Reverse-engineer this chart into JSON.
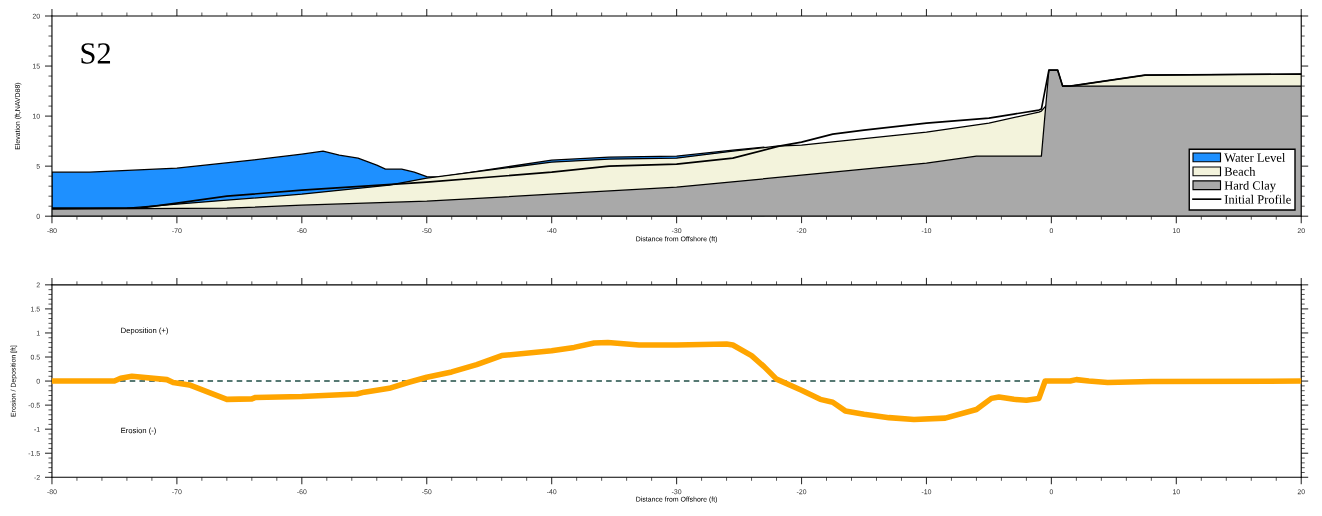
{
  "chart_data": [
    {
      "type": "area",
      "annotations": [
        "S2"
      ],
      "xlabel": "Distance from Offshore (ft)",
      "ylabel": "Elevation (ft,NAVD88)",
      "xlim": [
        -80,
        20
      ],
      "xticks": [
        -80,
        -70,
        -60,
        -50,
        -40,
        -30,
        -20,
        -10,
        0,
        10,
        20
      ],
      "ylim": [
        0,
        20
      ],
      "yticks": [
        0,
        5,
        10,
        15,
        20
      ],
      "grid": false,
      "legend": "bottom right",
      "series": [
        {
          "name": "Water Level",
          "color": "#1e90ff",
          "x": [
            -80,
            -77,
            -70,
            -64,
            -60,
            -58.3,
            -57,
            -55.5,
            -54,
            -53.3,
            -52,
            -51,
            -50,
            -49,
            -40,
            -35.4,
            -30,
            -25.5,
            -23
          ],
          "values": [
            4.4,
            4.4,
            4.8,
            5.6,
            6.2,
            6.5,
            6.1,
            5.8,
            5.1,
            4.7,
            4.7,
            4.4,
            3.95,
            3.9,
            5.6,
            5.9,
            6.0,
            6.6,
            6.9
          ]
        },
        {
          "name": "Beach",
          "color": "#f3f3dc",
          "x": [
            -80,
            -74,
            -70,
            -66,
            -60,
            -53,
            -50,
            -40,
            -35.4,
            -30,
            -25.5,
            -22,
            -20,
            -10,
            -5,
            -1,
            -0.8,
            0.9,
            1.5,
            7.5,
            20
          ],
          "values": [
            0.7,
            0.8,
            1.2,
            1.6,
            2.2,
            3.1,
            3.8,
            5.4,
            5.7,
            5.8,
            6.5,
            7.0,
            7.1,
            8.4,
            9.3,
            10.4,
            10.5,
            13.0,
            13.0,
            14.1,
            14.2
          ]
        },
        {
          "name": "Hard Clay",
          "color": "#a9a9a9",
          "x": [
            -80,
            -66,
            -60,
            -50,
            -40,
            -30,
            -20,
            -10,
            -6,
            -0.8,
            -0.2,
            0.5,
            0.9,
            20
          ],
          "values": [
            0.7,
            0.8,
            1.1,
            1.5,
            2.2,
            2.9,
            4.1,
            5.3,
            6.0,
            6.0,
            14.6,
            14.6,
            13.0,
            13.0
          ]
        },
        {
          "name": "Initial Profile",
          "type": "line",
          "color": "#000000",
          "x": [
            -80,
            -73,
            -70,
            -66,
            -60,
            -50,
            -40,
            -35.4,
            -30,
            -25.5,
            -21.8,
            -20,
            -17.5,
            -15,
            -10,
            -5,
            -3,
            -1,
            -0.8,
            -0.2,
            0.5,
            0.9,
            1.5,
            7.5,
            20
          ],
          "values": [
            0.8,
            0.8,
            1.3,
            2.0,
            2.6,
            3.4,
            4.4,
            5.0,
            5.2,
            5.8,
            7.0,
            7.4,
            8.2,
            8.6,
            9.3,
            9.8,
            10.2,
            10.6,
            10.7,
            14.6,
            14.6,
            13.0,
            13.0,
            14.1,
            14.2
          ]
        }
      ]
    },
    {
      "type": "line",
      "annotations": [
        "Deposition (+)",
        "Erosion (-)"
      ],
      "xlabel": "Distance from Offshore (ft)",
      "ylabel": "Erosion / Deposition [ft]",
      "xlim": [
        -80,
        20
      ],
      "xticks": [
        -80,
        -70,
        -60,
        -50,
        -40,
        -30,
        -20,
        -10,
        0,
        10,
        20
      ],
      "ylim": [
        -2,
        2
      ],
      "yticks": [
        -2,
        -1.5,
        -1,
        -0.5,
        0,
        0.5,
        1,
        1.5,
        2
      ],
      "grid": false,
      "ref_lines": [
        {
          "axis": "y",
          "value": 0,
          "color": "#1f4e46",
          "line_style": "dashed"
        }
      ],
      "series": [
        {
          "color": "#ffa500",
          "x": [
            -80,
            -75,
            -74.5,
            -73.6,
            -70.8,
            -70.3,
            -69,
            -66,
            -64,
            -63.7,
            -60,
            -55.6,
            -55,
            -53,
            -51.5,
            -50,
            -48,
            -46,
            -44,
            -40,
            -38.2,
            -36.6,
            -35.5,
            -33,
            -30,
            -28,
            -26,
            -25.5,
            -24,
            -23,
            -22,
            -20,
            -18.5,
            -17.5,
            -16.5,
            -15,
            -13,
            -11,
            -8.5,
            -6,
            -4.8,
            -4.2,
            -3,
            -2,
            -1,
            -0.5,
            1.5,
            2,
            3,
            4.5,
            8,
            20
          ],
          "values": [
            0,
            0,
            0.06,
            0.1,
            0.03,
            -0.03,
            -0.08,
            -0.38,
            -0.37,
            -0.34,
            -0.32,
            -0.27,
            -0.23,
            -0.15,
            -0.03,
            0.08,
            0.19,
            0.34,
            0.53,
            0.63,
            0.7,
            0.79,
            0.8,
            0.75,
            0.75,
            0.76,
            0.77,
            0.75,
            0.53,
            0.3,
            0.04,
            -0.19,
            -0.38,
            -0.44,
            -0.62,
            -0.69,
            -0.76,
            -0.8,
            -0.77,
            -0.59,
            -0.36,
            -0.33,
            -0.38,
            -0.4,
            -0.36,
            0,
            0,
            0.03,
            0,
            -0.03,
            -0.01,
            0
          ]
        }
      ]
    }
  ]
}
